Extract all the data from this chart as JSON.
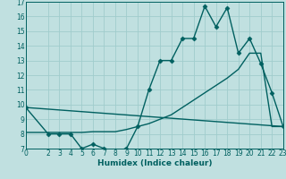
{
  "background_color": "#c0e0e0",
  "grid_color": "#a0cccc",
  "line_color": "#006060",
  "xlabel": "Humidex (Indice chaleur)",
  "ylim": [
    7,
    17
  ],
  "xlim": [
    0,
    23
  ],
  "yticks": [
    7,
    8,
    9,
    10,
    11,
    12,
    13,
    14,
    15,
    16,
    17
  ],
  "xticks": [
    0,
    2,
    3,
    4,
    5,
    6,
    7,
    8,
    9,
    10,
    11,
    12,
    13,
    14,
    15,
    16,
    17,
    18,
    19,
    20,
    21,
    22,
    23
  ],
  "line1_x": [
    0,
    2,
    3,
    4,
    5,
    6,
    7,
    8,
    9,
    10,
    11,
    12,
    13,
    14,
    15,
    16,
    17,
    18,
    19,
    20,
    21,
    22,
    23
  ],
  "line1_y": [
    9.8,
    8.0,
    8.0,
    8.0,
    7.0,
    7.3,
    7.0,
    6.85,
    7.0,
    8.5,
    11.0,
    13.0,
    13.0,
    14.5,
    14.5,
    16.7,
    15.3,
    16.6,
    13.5,
    14.5,
    12.8,
    10.8,
    8.5
  ],
  "line2_x": [
    0,
    23
  ],
  "line2_y": [
    9.8,
    8.5
  ],
  "line3_x": [
    0,
    2,
    3,
    4,
    5,
    6,
    7,
    8,
    9,
    10,
    11,
    12,
    13,
    14,
    15,
    16,
    17,
    18,
    19,
    20,
    21,
    22,
    23
  ],
  "line3_y": [
    8.1,
    8.1,
    8.1,
    8.1,
    8.1,
    8.15,
    8.15,
    8.15,
    8.3,
    8.5,
    8.7,
    9.0,
    9.3,
    9.8,
    10.3,
    10.8,
    11.3,
    11.8,
    12.4,
    13.5,
    13.5,
    8.5,
    8.5
  ],
  "marker": "D",
  "markersize": 2.5,
  "linewidth": 1.0,
  "xlabel_fontsize": 6.5,
  "tick_fontsize": 5.5
}
